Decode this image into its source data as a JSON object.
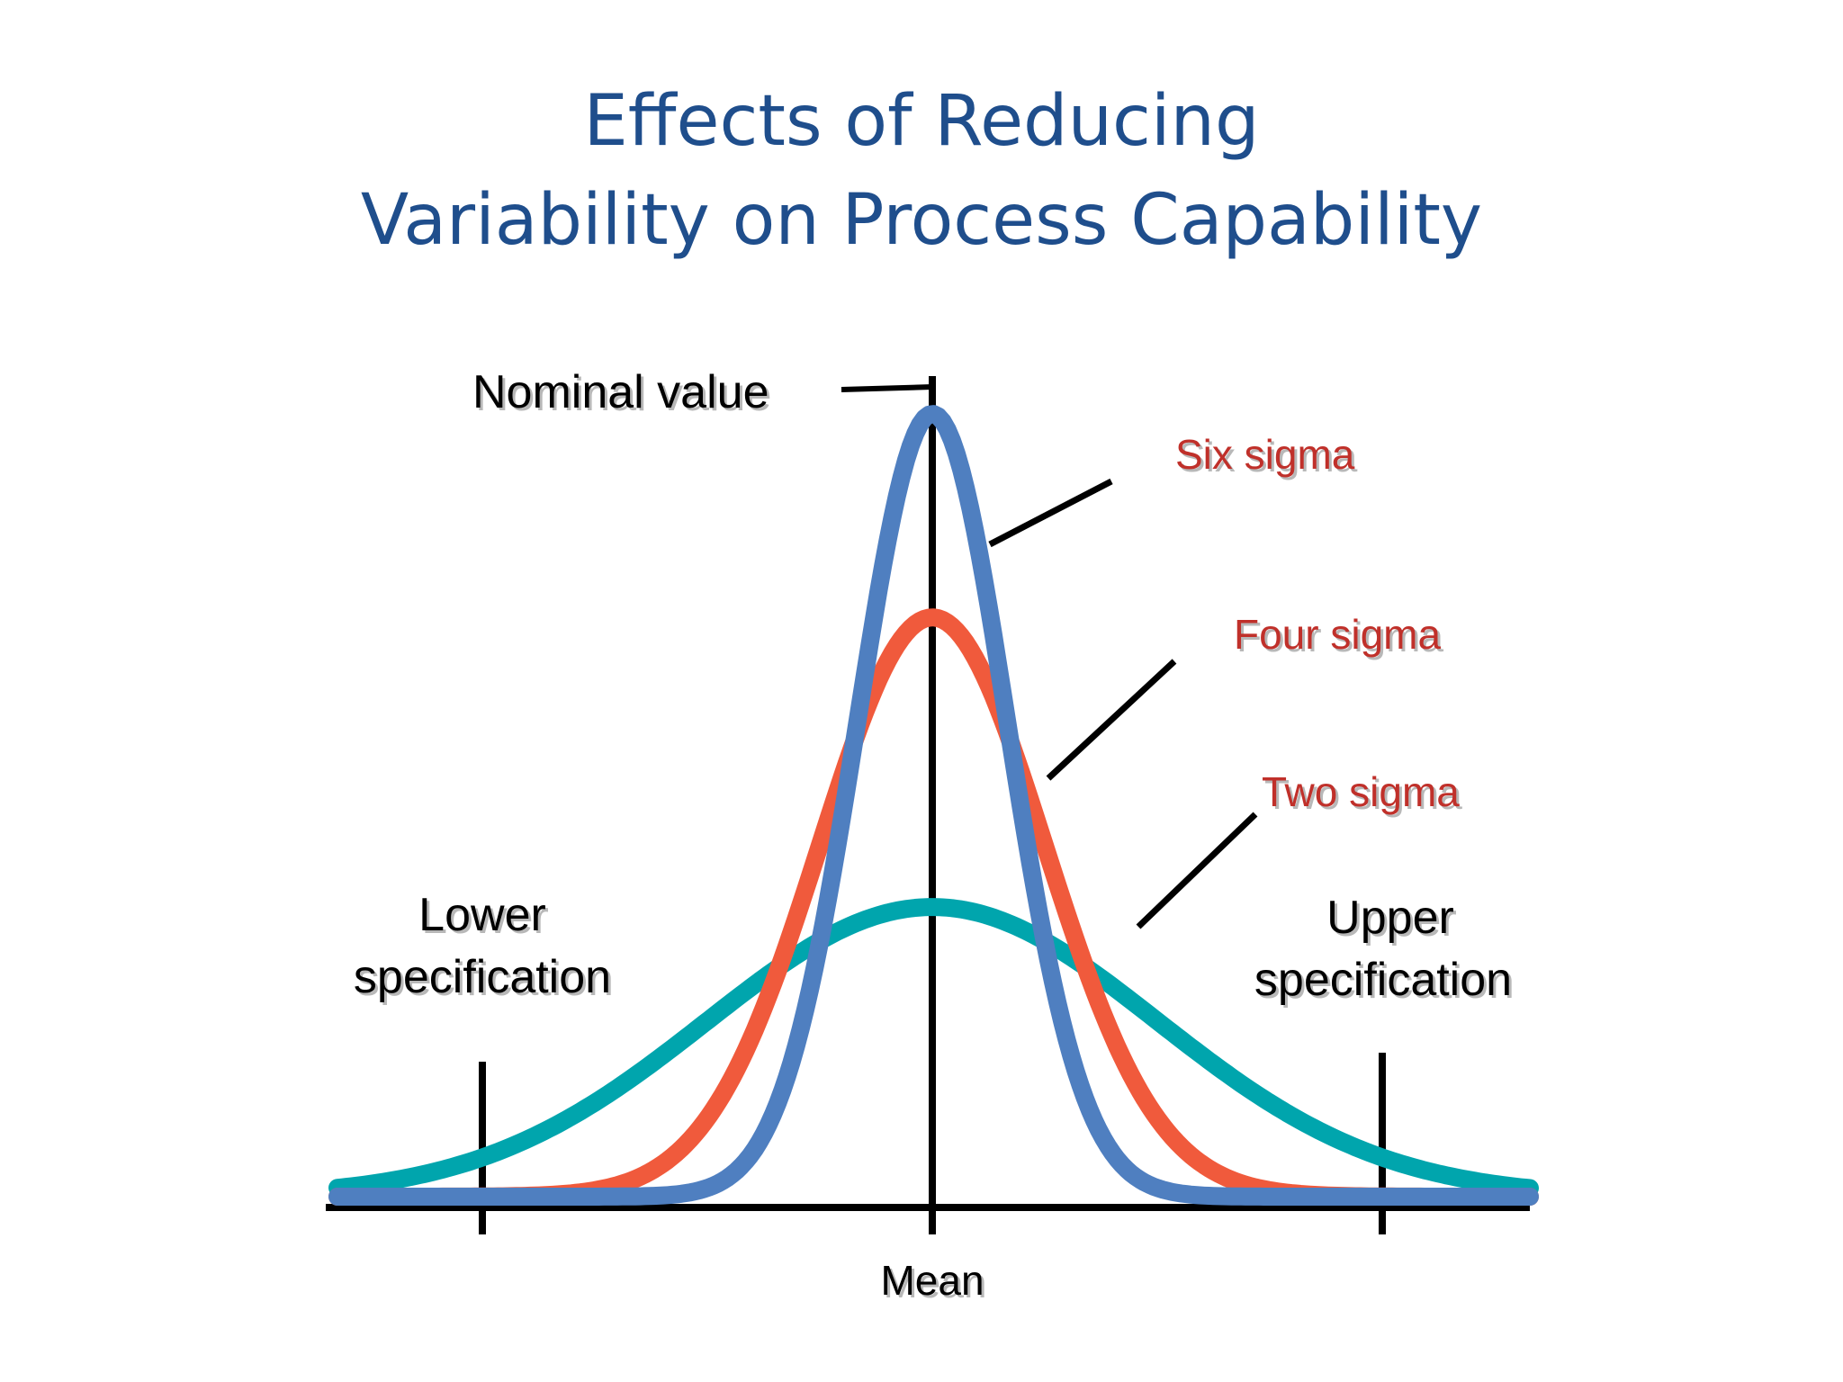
{
  "chart_data": {
    "type": "line",
    "title": "Effects of Reducing Variability on Process Capability",
    "title_lines": [
      "Effects of Reducing",
      "Variability on Process Capability"
    ],
    "xlabel": "Mean",
    "ylabel": "",
    "grid": false,
    "xlim": [
      -4,
      4
    ],
    "spec_limits": {
      "lower": -3,
      "upper": 3,
      "lower_label": [
        "Lower",
        "specification"
      ],
      "upper_label": [
        "Upper",
        "specification"
      ]
    },
    "nominal": {
      "value": 0,
      "label": "Nominal value"
    },
    "series": [
      {
        "name": "Two sigma",
        "sigma": 1.5,
        "peak": 0.37,
        "color": "#00a5ad",
        "label_color": "#c0302a"
      },
      {
        "name": "Four sigma",
        "sigma": 0.75,
        "peak": 0.74,
        "color": "#f05a3c",
        "label_color": "#c0302a"
      },
      {
        "name": "Six sigma",
        "sigma": 0.5,
        "peak": 1.0,
        "color": "#4f7fc0",
        "label_color": "#c0302a"
      }
    ]
  }
}
